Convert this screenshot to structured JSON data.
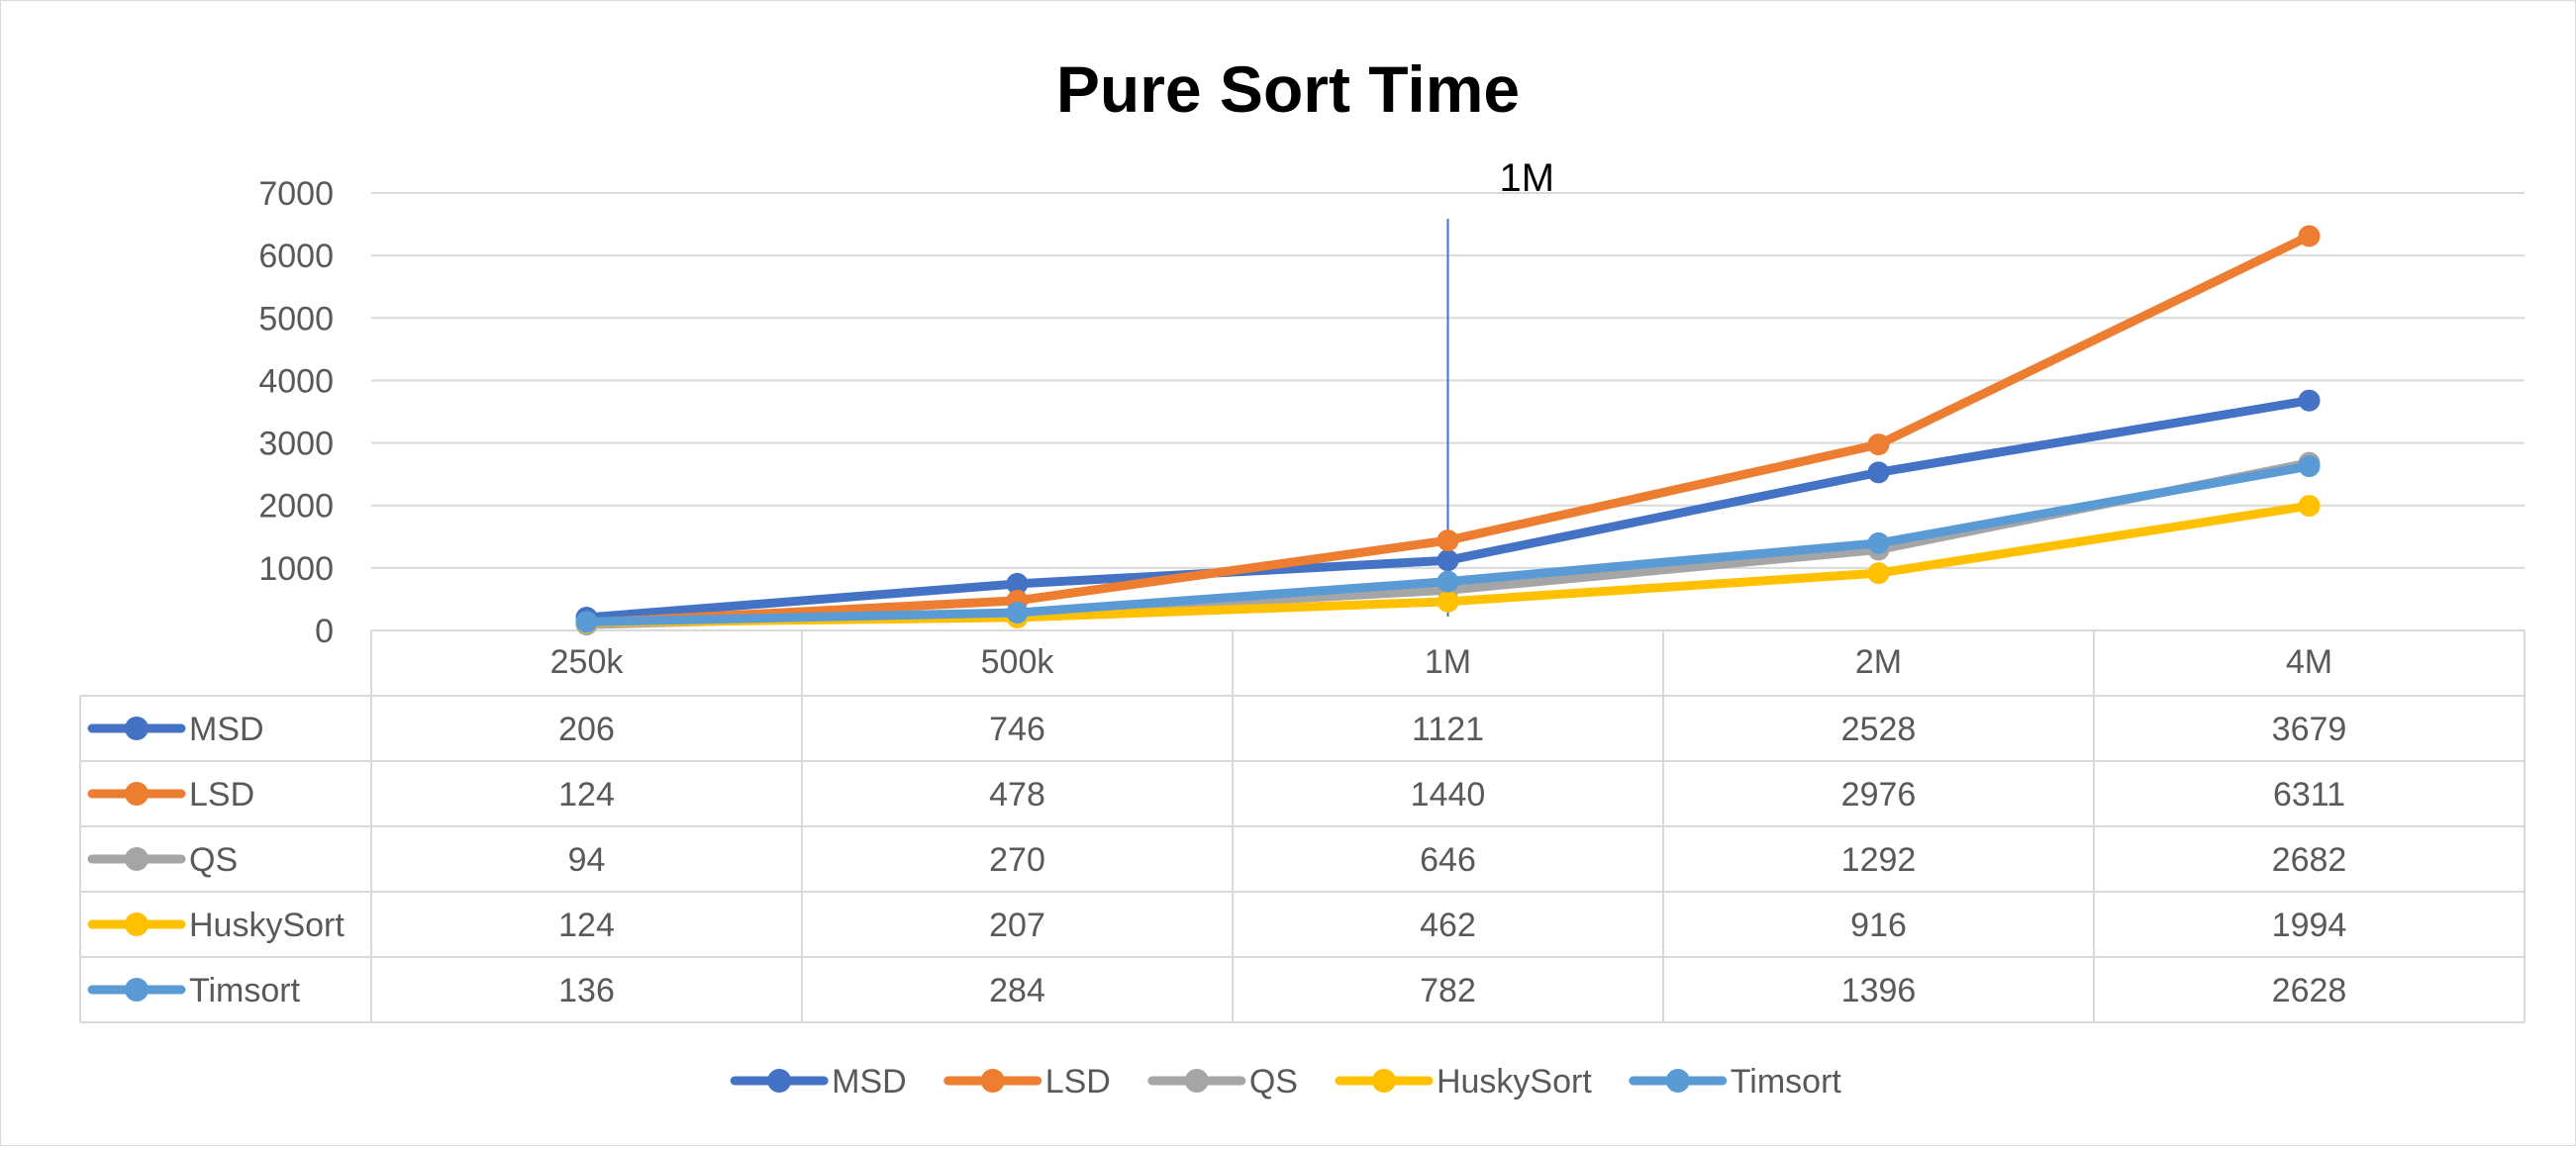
{
  "chart_data": {
    "type": "line",
    "title": "Pure Sort Time",
    "categories": [
      "250k",
      "500k",
      "1M",
      "2M",
      "4M"
    ],
    "series": [
      {
        "name": "MSD",
        "color": "#4472C4",
        "values": [
          206,
          746,
          1121,
          2528,
          3679
        ]
      },
      {
        "name": "LSD",
        "color": "#ED7D31",
        "values": [
          124,
          478,
          1440,
          2976,
          6311
        ]
      },
      {
        "name": "QS",
        "color": "#A5A5A5",
        "values": [
          94,
          270,
          646,
          1292,
          2682
        ]
      },
      {
        "name": "HuskySort",
        "color": "#FFC000",
        "values": [
          124,
          207,
          462,
          916,
          1994
        ]
      },
      {
        "name": "Timsort",
        "color": "#5B9BD5",
        "values": [
          136,
          284,
          782,
          1396,
          2628
        ]
      }
    ],
    "y_ticks": [
      "0",
      "1000",
      "2000",
      "3000",
      "4000",
      "5000",
      "6000",
      "7000"
    ],
    "ylim": [
      0,
      7000
    ],
    "grid": true,
    "legend": "bottom",
    "data_table": true,
    "annotation": {
      "label": "1M",
      "at_category": "1M",
      "color": "#4472C4"
    }
  }
}
